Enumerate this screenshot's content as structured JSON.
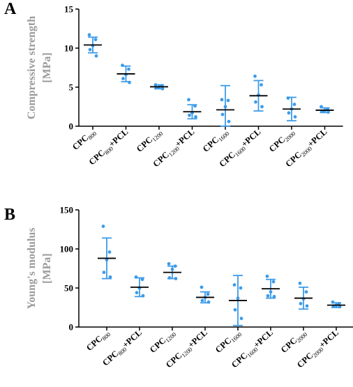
{
  "colors": {
    "points": "#3d9be9",
    "mean": "#000000",
    "axis": "#000000",
    "ylabel": "#9a9a9a"
  },
  "chart_data": [
    {
      "type": "scatter",
      "panel": "A",
      "title": "",
      "ylabel": [
        "Compressive strength",
        "[MPa]"
      ],
      "xlabel": "",
      "ylim": [
        0,
        15
      ],
      "yticks": [
        "0",
        "5",
        "10",
        "15"
      ],
      "categories": [
        {
          "base": "CPC",
          "sub": "800",
          "suffix": ""
        },
        {
          "base": "CPC",
          "sub": "800",
          "suffix": "+PCL"
        },
        {
          "base": "CPC",
          "sub": "1200",
          "suffix": ""
        },
        {
          "base": "CPC",
          "sub": "1200",
          "suffix": "+PCL"
        },
        {
          "base": "CPC",
          "sub": "1600",
          "suffix": ""
        },
        {
          "base": "CPC",
          "sub": "1600",
          "suffix": "+PCL"
        },
        {
          "base": "CPC",
          "sub": "2000",
          "suffix": ""
        },
        {
          "base": "CPC",
          "sub": "2000",
          "suffix": "+PCL"
        }
      ],
      "mean": [
        10.4,
        6.7,
        5.05,
        1.85,
        2.1,
        3.9,
        2.2,
        2.05
      ],
      "sd": [
        1.0,
        1.0,
        0.25,
        0.9,
        3.1,
        1.95,
        1.5,
        0.3
      ],
      "points": [
        [
          11.7,
          11.1,
          10.3,
          9.8,
          9.0
        ],
        [
          7.8,
          7.3,
          6.6,
          6.1,
          5.6
        ],
        [
          5.3,
          5.2,
          5.0,
          4.9,
          4.8
        ],
        [
          3.4,
          2.6,
          1.7,
          1.4,
          1.2
        ],
        [
          3.4,
          3.3,
          2.5,
          1.5,
          0.6
        ],
        [
          6.4,
          5.3,
          4.0,
          3.1,
          2.5
        ],
        [
          3.6,
          2.8,
          2.2,
          1.7,
          1.2
        ],
        [
          2.5,
          2.2,
          2.0,
          1.9,
          1.8
        ]
      ]
    },
    {
      "type": "scatter",
      "panel": "B",
      "title": "",
      "ylabel": [
        "Young's modulus",
        "[MPa]"
      ],
      "xlabel": "",
      "ylim": [
        0,
        150
      ],
      "yticks": [
        "0",
        "50",
        "100",
        "150"
      ],
      "categories": [
        {
          "base": "CPC",
          "sub": "800",
          "suffix": ""
        },
        {
          "base": "CPC",
          "sub": "800",
          "suffix": "+PCL"
        },
        {
          "base": "CPC",
          "sub": "1200",
          "suffix": ""
        },
        {
          "base": "CPC",
          "sub": "1200",
          "suffix": "+PCL"
        },
        {
          "base": "CPC",
          "sub": "1600",
          "suffix": ""
        },
        {
          "base": "CPC",
          "sub": "1600",
          "suffix": "+PCL"
        },
        {
          "base": "CPC",
          "sub": "2000",
          "suffix": ""
        },
        {
          "base": "CPC",
          "sub": "2000",
          "suffix": "+PCL"
        }
      ],
      "mean": [
        88,
        51,
        70,
        38,
        34,
        49,
        37,
        28
      ],
      "sd": [
        26,
        12,
        8,
        7,
        32,
        12,
        14,
        3
      ],
      "points": [
        [
          129,
          96,
          86,
          70,
          64
        ],
        [
          64,
          61,
          50,
          44,
          40
        ],
        [
          81,
          78,
          74,
          63,
          62
        ],
        [
          51,
          42,
          38,
          34,
          32
        ],
        [
          54,
          50,
          37,
          22,
          11
        ],
        [
          65,
          58,
          45,
          40,
          39
        ],
        [
          56,
          45,
          36,
          30,
          27
        ],
        [
          32,
          30,
          28,
          27,
          26
        ]
      ]
    }
  ]
}
